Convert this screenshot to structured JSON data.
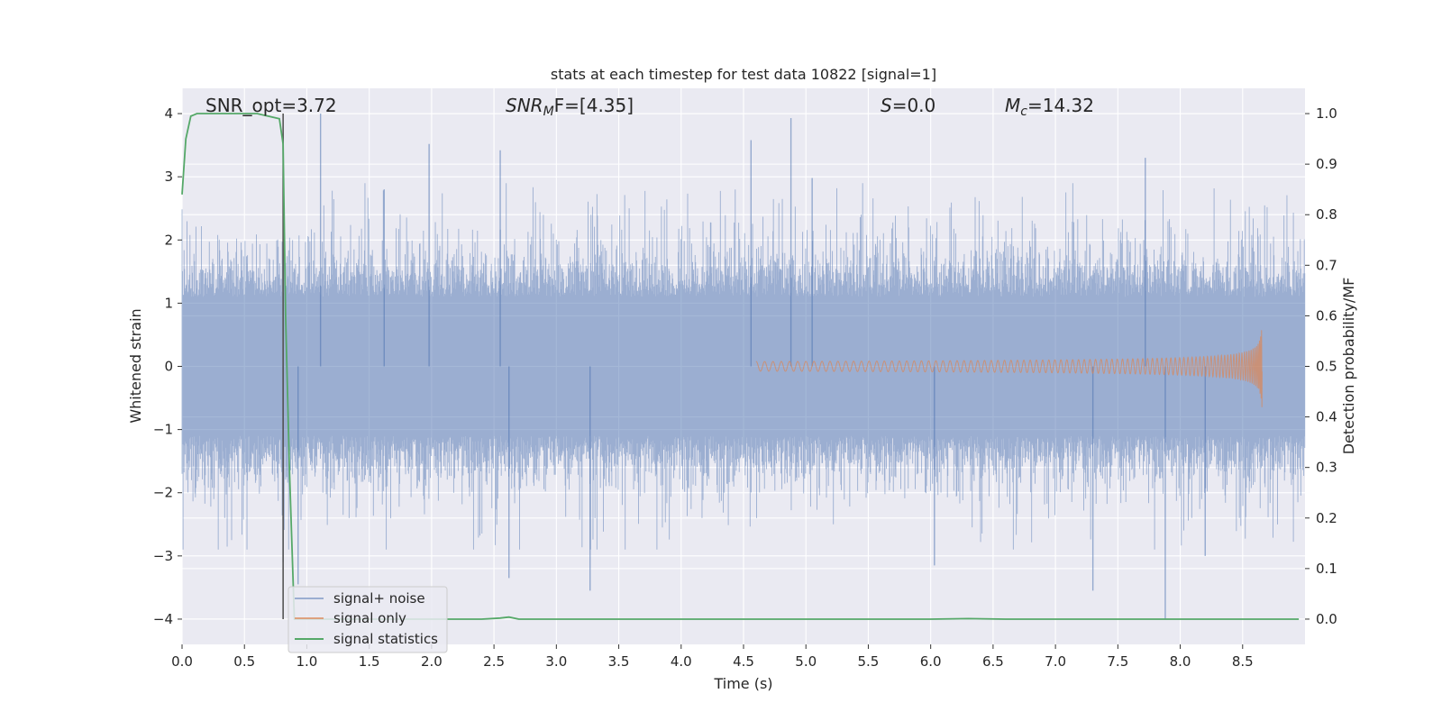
{
  "chart_data": {
    "type": "line",
    "title": "stats at each timestep for test data 10822 [signal=1]",
    "xlabel": "Time (s)",
    "ylabel_left": "Whitened strain",
    "ylabel_right": "Detection probability/MF",
    "xlim": [
      0.0,
      9.0
    ],
    "ylim_left": [
      -4.4,
      4.4
    ],
    "ylim_right": [
      -0.05,
      1.05
    ],
    "x_ticks": [
      "0.0",
      "0.5",
      "1.0",
      "1.5",
      "2.0",
      "2.5",
      "3.0",
      "3.5",
      "4.0",
      "4.5",
      "5.0",
      "5.5",
      "6.0",
      "6.5",
      "7.0",
      "7.5",
      "8.0",
      "8.5"
    ],
    "y_ticks_left": [
      "−4",
      "−3",
      "−2",
      "−1",
      "0",
      "1",
      "2",
      "3",
      "4"
    ],
    "y_ticks_right": [
      "0.0",
      "0.1",
      "0.2",
      "0.3",
      "0.4",
      "0.5",
      "0.6",
      "0.7",
      "0.8",
      "0.9",
      "1.0"
    ],
    "annotations": {
      "snr_opt": "SNR_opt=3.72",
      "snr_mf_label": "SNR",
      "snr_mf_sub": "M",
      "snr_mf_rest": "F=[4.35]",
      "s_label": "S",
      "s_rest": "=0.0",
      "mc_label": "M",
      "mc_sub": "c",
      "mc_rest": "=14.32"
    },
    "vertical_marker_x": 0.81,
    "legend": {
      "placement": "lower-left",
      "entries": [
        "signal+ noise",
        "signal only",
        "signal statistics"
      ]
    },
    "grid": true,
    "series": [
      {
        "name": "signal+ noise",
        "color": "#4c72b0",
        "note": "whitened noise with std ~1, peaks between about -4 and 4",
        "extremes": [
          [
            0.81,
            -3.1
          ],
          [
            0.93,
            -3.45
          ],
          [
            1.11,
            4.0
          ],
          [
            1.62,
            2.8
          ],
          [
            1.98,
            3.52
          ],
          [
            2.55,
            3.42
          ],
          [
            2.62,
            -3.35
          ],
          [
            3.27,
            -3.55
          ],
          [
            4.88,
            3.93
          ],
          [
            4.56,
            3.58
          ],
          [
            5.05,
            2.98
          ],
          [
            6.03,
            -3.15
          ],
          [
            7.3,
            -3.55
          ],
          [
            7.72,
            3.3
          ],
          [
            7.88,
            -4.0
          ],
          [
            8.2,
            -3.0
          ]
        ]
      },
      {
        "name": "signal only",
        "color": "#dd8452",
        "note": "chirp growing in amplitude, merging near t=8.66",
        "t_start": 4.6,
        "t_merge": 8.66,
        "peak_amplitude": 0.75
      },
      {
        "name": "signal statistics",
        "color": "#55a868",
        "axis": "right",
        "x": [
          0.0,
          0.03,
          0.07,
          0.12,
          0.3,
          0.6,
          0.78,
          0.81,
          0.83,
          0.86,
          0.9,
          1.5,
          2.4,
          2.55,
          2.62,
          2.7,
          3.5,
          6.0,
          6.3,
          6.6,
          8.95
        ],
        "y": [
          0.84,
          0.95,
          0.995,
          1.0,
          1.0,
          1.0,
          0.99,
          0.94,
          0.6,
          0.3,
          0.0,
          0.0,
          0.0,
          0.002,
          0.004,
          0.0,
          0.0,
          0.0,
          0.001,
          0.0,
          0.0
        ]
      }
    ]
  }
}
